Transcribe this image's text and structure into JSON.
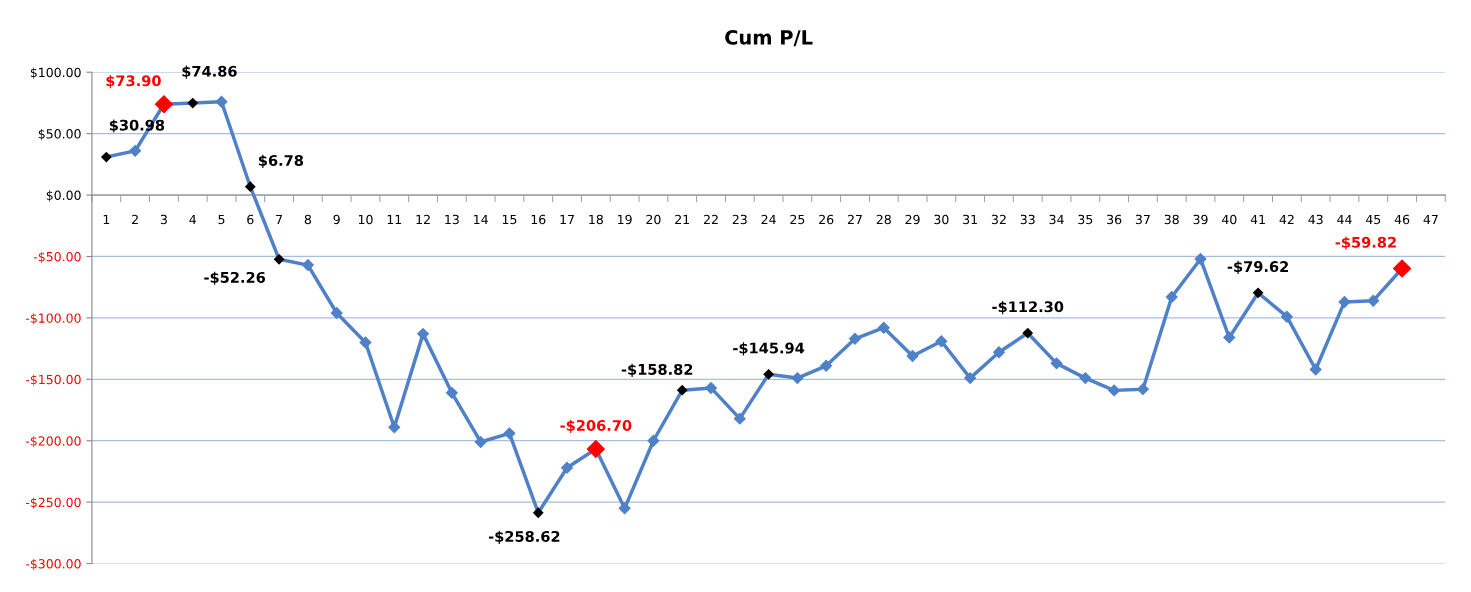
{
  "chart_data": {
    "type": "line",
    "title": "Cum P/L",
    "categories": [
      "1",
      "2",
      "3",
      "4",
      "5",
      "6",
      "7",
      "8",
      "9",
      "10",
      "11",
      "12",
      "13",
      "14",
      "15",
      "16",
      "17",
      "18",
      "19",
      "20",
      "21",
      "22",
      "23",
      "24",
      "25",
      "26",
      "27",
      "28",
      "29",
      "30",
      "31",
      "32",
      "33",
      "34",
      "35",
      "36",
      "37",
      "38",
      "39",
      "40",
      "41",
      "42",
      "43",
      "44",
      "45",
      "46",
      "47"
    ],
    "series": [
      {
        "color": "#4f81c8",
        "values": [
          30.98,
          36,
          73.9,
          74.86,
          76,
          6.78,
          -52.26,
          -57,
          -96,
          -120,
          -189,
          -113,
          -161,
          -201,
          -194,
          -258.62,
          -222,
          -206.7,
          -255,
          -200,
          -158.82,
          -157,
          -182,
          -145.94,
          -149,
          -139,
          -117,
          -108,
          -131,
          -119,
          -149,
          -128,
          -112.3,
          -137,
          -149,
          -159,
          -158,
          -83,
          -52,
          -116,
          -79.62,
          -99,
          -142,
          -87,
          -86,
          -59.82,
          null
        ],
        "colors": [
          "#000000",
          "#4f81c8",
          "#ff0000",
          "#000000",
          "#4f81c8",
          "#000000",
          "#000000",
          "#4f81c8",
          "#4f81c8",
          "#4f81c8",
          "#4f81c8",
          "#4f81c8",
          "#4f81c8",
          "#4f81c8",
          "#4f81c8",
          "#000000",
          "#4f81c8",
          "#ff0000",
          "#4f81c8",
          "#4f81c8",
          "#000000",
          "#4f81c8",
          "#4f81c8",
          "#000000",
          "#4f81c8",
          "#4f81c8",
          "#4f81c8",
          "#4f81c8",
          "#4f81c8",
          "#4f81c8",
          "#4f81c8",
          "#4f81c8",
          "#000000",
          "#4f81c8",
          "#4f81c8",
          "#4f81c8",
          "#4f81c8",
          "#4f81c8",
          "#4f81c8",
          "#4f81c8",
          "#000000",
          "#4f81c8",
          "#4f81c8",
          "#4f81c8",
          "#4f81c8",
          "#ff0000",
          null
        ],
        "value_labels": [
          "$30.98",
          null,
          "$73.90",
          "$74.86",
          null,
          "$6.78",
          "-$52.26",
          null,
          null,
          null,
          null,
          null,
          null,
          null,
          null,
          "-$258.62",
          null,
          "-$206.70",
          null,
          null,
          "-$158.82",
          null,
          null,
          "-$145.94",
          null,
          null,
          null,
          null,
          null,
          null,
          null,
          null,
          "-$112.30",
          null,
          null,
          null,
          null,
          null,
          null,
          null,
          "-$79.62",
          null,
          null,
          null,
          null,
          "-$59.82",
          null
        ]
      }
    ],
    "ylim": [
      -300,
      100
    ],
    "yticks": [
      {
        "value": -300,
        "label": "-$300.00"
      },
      {
        "value": -250,
        "label": "-$250.00"
      },
      {
        "value": -200,
        "label": "-$200.00"
      },
      {
        "value": -150,
        "label": "-$150.00"
      },
      {
        "value": -100,
        "label": "-$100.00"
      },
      {
        "value": -50,
        "label": "-$50.00"
      },
      {
        "value": 0,
        "label": "$0.00"
      },
      {
        "value": 50,
        "label": "$50.00"
      },
      {
        "value": 100,
        "label": "$100.00"
      }
    ],
    "grid": "y",
    "marker": "diamond",
    "line_style": "solid"
  }
}
